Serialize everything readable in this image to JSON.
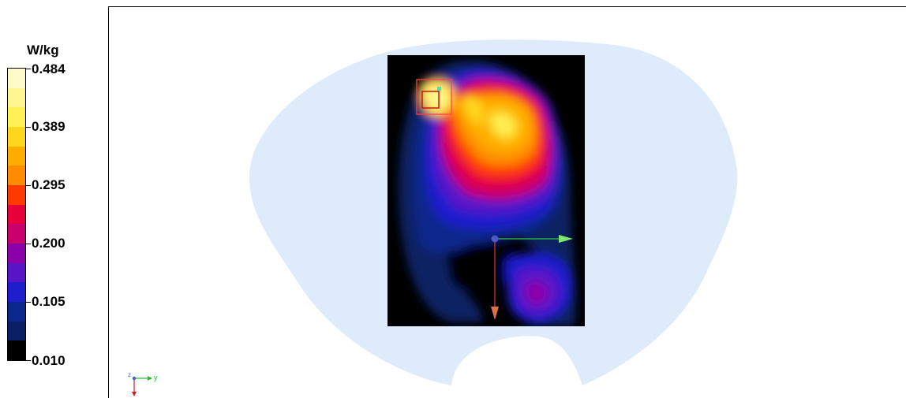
{
  "legend": {
    "unit": "W/kg",
    "ticks": [
      "0.484",
      "0.389",
      "0.295",
      "0.200",
      "0.105",
      "0.010"
    ],
    "colors": [
      "#fffbc8",
      "#fff690",
      "#fff055",
      "#ffd61e",
      "#ffad00",
      "#ff8c00",
      "#ff3a00",
      "#e8003a",
      "#c8006e",
      "#8c00aa",
      "#5a14c8",
      "#1e1ecd",
      "#0a288c",
      "#0a2064",
      "#000000"
    ]
  },
  "viewport": {
    "phantom_color": "#deebfb",
    "scan_background": "#000000",
    "axis_y_color": "#2ec642",
    "axis_z_color": "#d23b33",
    "cube_color": "#ff4040"
  },
  "triad": {
    "y_label": "y",
    "z_label": "z"
  }
}
